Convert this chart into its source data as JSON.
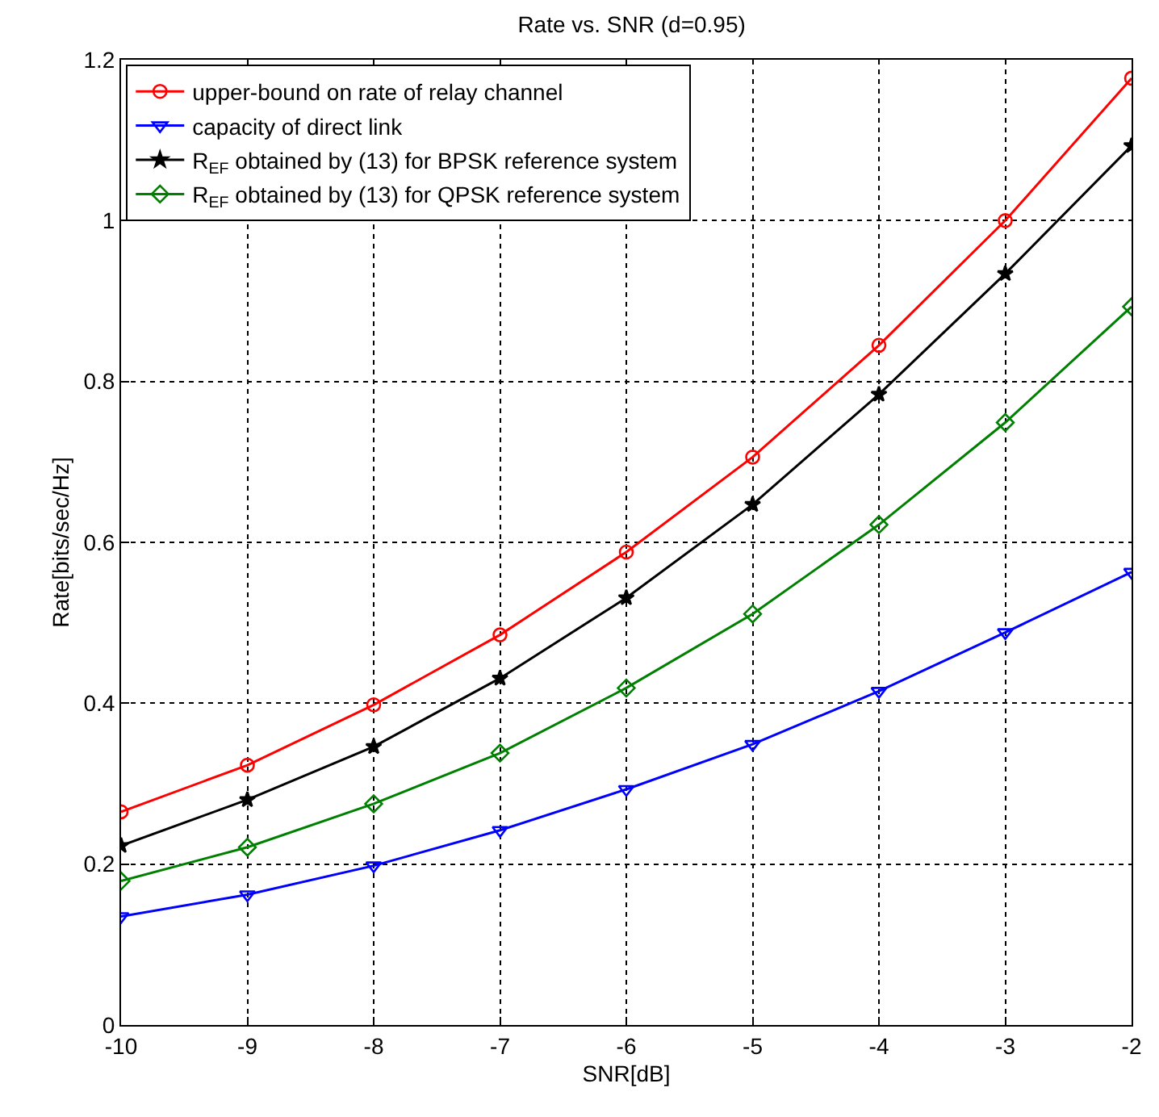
{
  "chart_data": {
    "type": "line",
    "title": "Rate vs. SNR (d=0.95)",
    "xlabel": "SNR[dB]",
    "ylabel": "Rate[bits/sec/Hz]",
    "x": [
      -10,
      -9,
      -8,
      -7,
      -6,
      -5,
      -4,
      -3,
      -2
    ],
    "series": [
      {
        "name": "upper-bound on rate of relay channel",
        "color": "#ff0000",
        "marker": "circle",
        "values": [
          0.265,
          0.323,
          0.398,
          0.485,
          0.588,
          0.706,
          0.845,
          1.0,
          1.177
        ]
      },
      {
        "name": "capacity of direct link",
        "color": "#0000ff",
        "marker": "triangle",
        "values": [
          0.135,
          0.162,
          0.198,
          0.242,
          0.293,
          0.349,
          0.415,
          0.488,
          0.563
        ]
      },
      {
        "name": "R$_{EF}$ obtained by (13) for BPSK reference system",
        "color": "#000000",
        "marker": "star",
        "values": [
          0.223,
          0.28,
          0.346,
          0.431,
          0.531,
          0.647,
          0.784,
          0.934,
          1.093
        ]
      },
      {
        "name": "R$_{EF}$ obtained by (13) for QPSK reference system",
        "color": "#008000",
        "marker": "diamond",
        "values": [
          0.179,
          0.221,
          0.275,
          0.338,
          0.419,
          0.511,
          0.622,
          0.749,
          0.893
        ]
      }
    ],
    "xlim": [
      -10,
      -2
    ],
    "xticks": [
      -10,
      -9,
      -8,
      -7,
      -6,
      -5,
      -4,
      -3,
      -2
    ],
    "ylim": [
      0,
      1.2
    ],
    "yticks": [
      0,
      0.2,
      0.4,
      0.6,
      0.8,
      1,
      1.2
    ],
    "grid": true,
    "legend": "top left",
    "line_style": "solid"
  }
}
